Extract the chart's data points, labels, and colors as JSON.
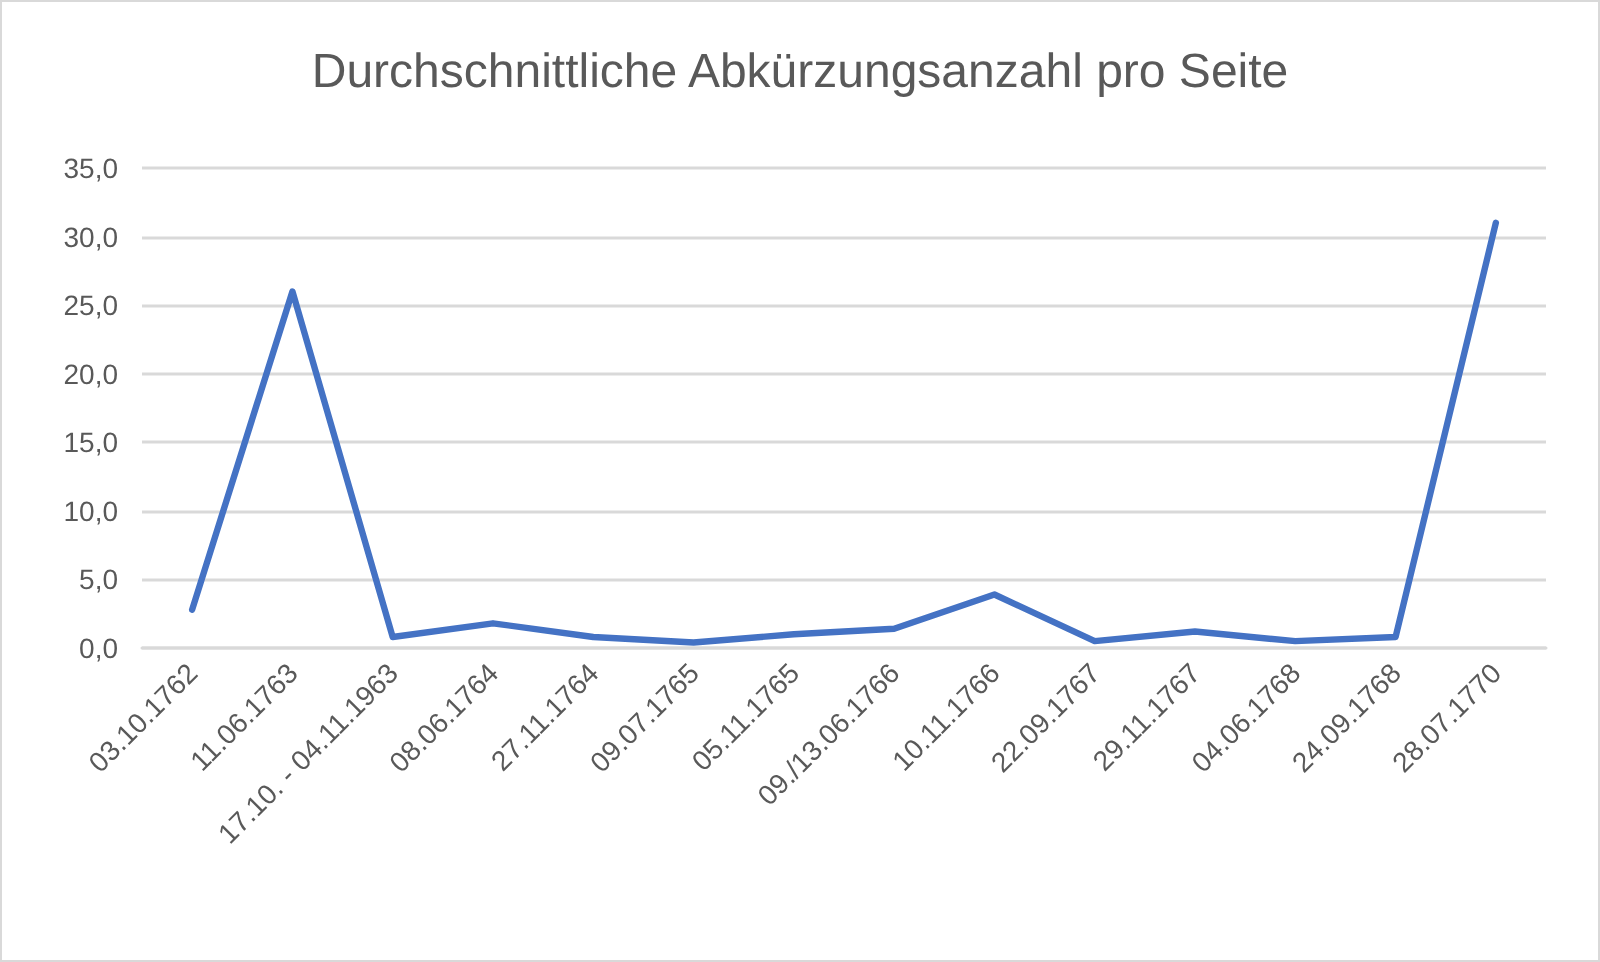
{
  "chart_data": {
    "type": "line",
    "title": "Durchschnittliche Abkürzungsanzahl pro Seite",
    "categories": [
      "03.10.1762",
      "11.06.1763",
      "17.10. - 04.11.1963",
      "08.06.1764",
      "27.11.1764",
      "09.07.1765",
      "05.11.1765",
      "09./13.06.1766",
      "10.11.1766",
      "22.09.1767",
      "29.11.1767",
      "04.06.1768",
      "24.09.1768",
      "28.07.1770"
    ],
    "values": [
      2.8,
      26.0,
      0.8,
      1.8,
      0.8,
      0.4,
      1.0,
      1.4,
      3.9,
      0.5,
      1.2,
      0.5,
      0.8,
      31.0
    ],
    "color": "#4472c4",
    "ylim": [
      0,
      35
    ],
    "yticks": [
      {
        "value": 0,
        "label": "0,0"
      },
      {
        "value": 5,
        "label": "5,0"
      },
      {
        "value": 10,
        "label": "10,0"
      },
      {
        "value": 15,
        "label": "15,0"
      },
      {
        "value": 20,
        "label": "20,0"
      },
      {
        "value": 25,
        "label": "25,0"
      },
      {
        "value": 30,
        "label": "30,0"
      },
      {
        "value": 35,
        "label": "35,0"
      }
    ],
    "grid": "y",
    "marker": "none"
  }
}
